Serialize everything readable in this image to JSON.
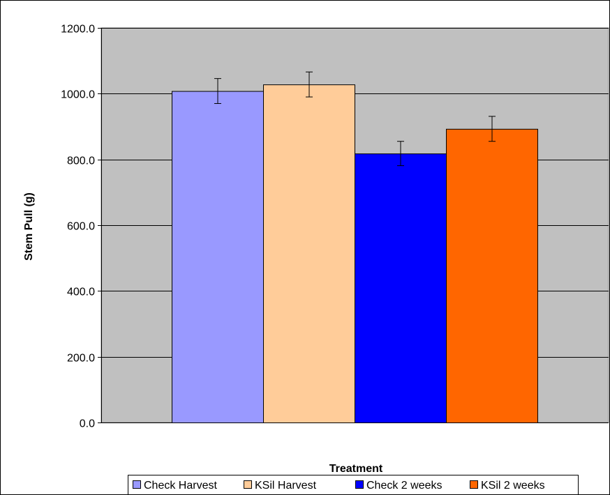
{
  "chart_data": {
    "type": "bar",
    "title": "",
    "xlabel": "Treatment",
    "ylabel": "Stem Pull (g)",
    "ylim": [
      0,
      1200
    ],
    "yticks": [
      0,
      200,
      400,
      600,
      800,
      1000,
      1200
    ],
    "ytick_labels": [
      "0.0",
      "200.0",
      "400.0",
      "600.0",
      "800.0",
      "1000.0",
      "1200.0"
    ],
    "grid": true,
    "legend_position": "bottom",
    "plot_background": "#C0C0C0",
    "series": [
      {
        "name": "Check Harvest",
        "value": 1008,
        "error": 38,
        "color": "#9999FF"
      },
      {
        "name": "KSil Harvest",
        "value": 1028,
        "error": 38,
        "color": "#FFCC99"
      },
      {
        "name": "Check 2 weeks",
        "value": 818,
        "error": 37,
        "color": "#0000FF"
      },
      {
        "name": "KSil 2 weeks",
        "value": 893,
        "error": 38,
        "color": "#FF6600"
      }
    ]
  }
}
